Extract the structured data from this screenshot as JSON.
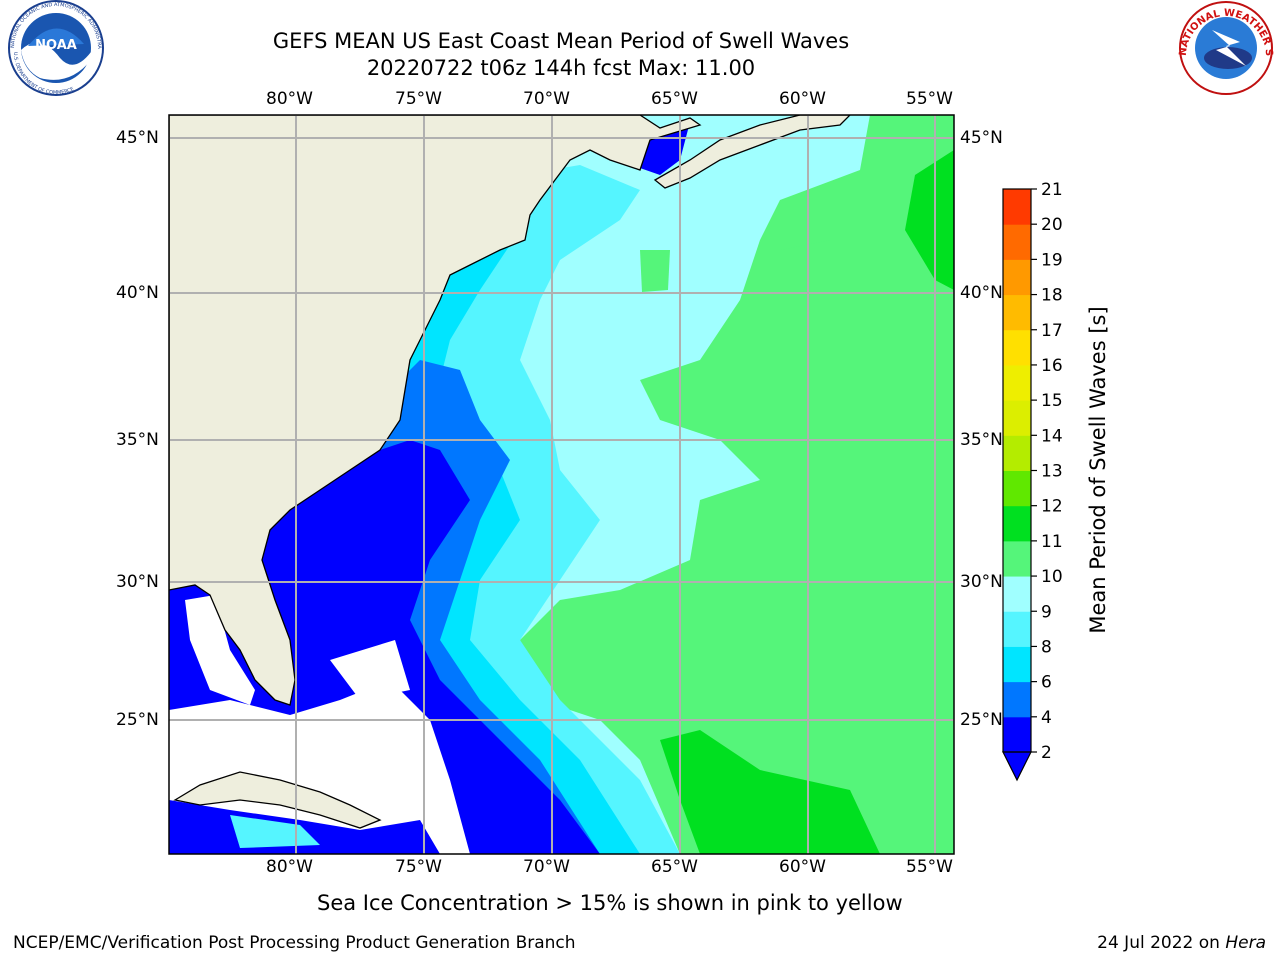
{
  "header": {
    "title_line1": "GEFS MEAN US East Coast Mean Period of Swell Waves",
    "title_line2": "20220722 t06z 144h fcst   Max: 11.00"
  },
  "logos": {
    "noaa_text": "NOAA",
    "noaa_ring_text": "NATIONAL OCEANIC AND ATMOSPHERIC ADMINISTRATION",
    "noaa_ring_bottom": "U.S. DEPARTMENT OF COMMERCE",
    "nws_ring_text": "NATIONAL WEATHER SERVICE"
  },
  "map": {
    "lon_labels": [
      "80°W",
      "75°W",
      "70°W",
      "65°W",
      "60°W",
      "55°W"
    ],
    "lat_labels": [
      "45°N",
      "40°N",
      "35°N",
      "30°N",
      "25°N"
    ],
    "colors": {
      "land": "#eeeedd",
      "ice_mask": "#ffffff",
      "grid": "#b0b0b0"
    }
  },
  "colorbar": {
    "label": "Mean Period of Swell Waves [s]",
    "ticks": [
      "2",
      "4",
      "6",
      "8",
      "9",
      "10",
      "11",
      "12",
      "13",
      "14",
      "15",
      "16",
      "17",
      "18",
      "19",
      "20",
      "21"
    ],
    "colors": [
      "#0000ff",
      "#0077ff",
      "#00e5ff",
      "#55f5ff",
      "#a0ffff",
      "#55f57a",
      "#00e020",
      "#60e800",
      "#b4ec00",
      "#dcee00",
      "#eeee00",
      "#ffe000",
      "#ffbb00",
      "#ff9900",
      "#ff6a00",
      "#ff3a00",
      "#ff0000"
    ]
  },
  "notes": {
    "sea_ice": "Sea Ice Concentration > 15% is shown in pink to yellow"
  },
  "footer": {
    "left": "NCEP/EMC/Verification Post Processing Product Generation Branch",
    "right_date": "24 Jul 2022 on ",
    "right_host": "Hera"
  }
}
